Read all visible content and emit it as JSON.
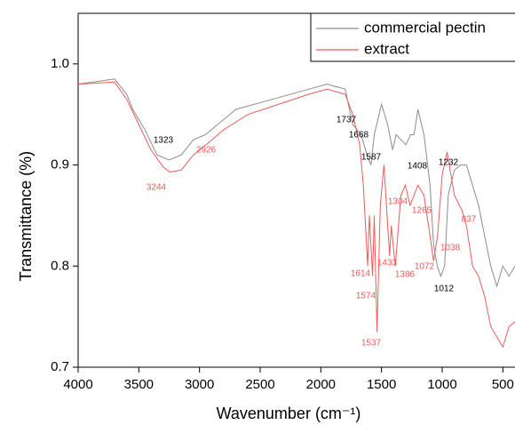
{
  "chart_data": {
    "type": "line",
    "xlabel": "Wavenumber (cm⁻¹)",
    "ylabel": "Transmittance (%)",
    "xlim": [
      4000,
      400
    ],
    "ylim": [
      0.7,
      1.05
    ],
    "xticks": [
      4000,
      3500,
      3000,
      2500,
      2000,
      1500,
      1000,
      500
    ],
    "yticks": [
      0.7,
      0.8,
      0.9,
      {
        "value": 1,
        "label": "1.0"
      }
    ],
    "legend": "upper right",
    "series": [
      {
        "name": "commercial pectin",
        "color": "#8c8c8c",
        "x": [
          4000,
          3700,
          3600,
          3550,
          3450,
          3350,
          3250,
          3150,
          3050,
          2950,
          2900,
          2700,
          2400,
          2100,
          1950,
          1800,
          1737,
          1700,
          1668,
          1620,
          1587,
          1560,
          1500,
          1450,
          1408,
          1380,
          1300,
          1260,
          1232,
          1200,
          1150,
          1100,
          1070,
          1040,
          1012,
          980,
          950,
          900,
          850,
          800,
          750,
          700,
          650,
          600,
          550,
          500,
          450,
          400
        ],
        "values": [
          0.98,
          0.985,
          0.97,
          0.955,
          0.935,
          0.91,
          0.905,
          0.91,
          0.925,
          0.93,
          0.935,
          0.955,
          0.965,
          0.975,
          0.98,
          0.975,
          0.94,
          0.935,
          0.93,
          0.91,
          0.9,
          0.93,
          0.96,
          0.94,
          0.915,
          0.93,
          0.92,
          0.93,
          0.93,
          0.955,
          0.93,
          0.88,
          0.82,
          0.8,
          0.79,
          0.8,
          0.87,
          0.895,
          0.9,
          0.9,
          0.88,
          0.86,
          0.83,
          0.8,
          0.78,
          0.8,
          0.79,
          0.8
        ],
        "annotations": [
          "1323",
          "1737",
          "1668",
          "1587",
          "1408",
          "1232",
          "1012"
        ]
      },
      {
        "name": "extract",
        "color": "#f05a5a",
        "x": [
          4000,
          3700,
          3600,
          3500,
          3400,
          3300,
          3244,
          3150,
          3050,
          2926,
          2800,
          2600,
          2300,
          2100,
          1950,
          1800,
          1737,
          1680,
          1650,
          1614,
          1600,
          1574,
          1560,
          1537,
          1510,
          1480,
          1433,
          1420,
          1386,
          1340,
          1304,
          1265,
          1200,
          1150,
          1100,
          1072,
          1038,
          1000,
          960,
          900,
          837,
          800,
          750,
          700,
          650,
          600,
          550,
          500,
          450,
          400
        ],
        "values": [
          0.98,
          0.982,
          0.965,
          0.94,
          0.915,
          0.898,
          0.893,
          0.895,
          0.91,
          0.922,
          0.935,
          0.95,
          0.962,
          0.97,
          0.975,
          0.97,
          0.95,
          0.92,
          0.88,
          0.8,
          0.85,
          0.79,
          0.85,
          0.735,
          0.86,
          0.9,
          0.81,
          0.84,
          0.8,
          0.87,
          0.88,
          0.86,
          0.88,
          0.87,
          0.83,
          0.805,
          0.83,
          0.89,
          0.913,
          0.87,
          0.855,
          0.84,
          0.8,
          0.79,
          0.77,
          0.74,
          0.73,
          0.72,
          0.74,
          0.745
        ],
        "annotations": [
          "2926",
          "3244",
          "1304",
          "1265",
          "837",
          "1038",
          "1614",
          "1433",
          "1386",
          "1072",
          "1574",
          "1537"
        ]
      }
    ]
  }
}
